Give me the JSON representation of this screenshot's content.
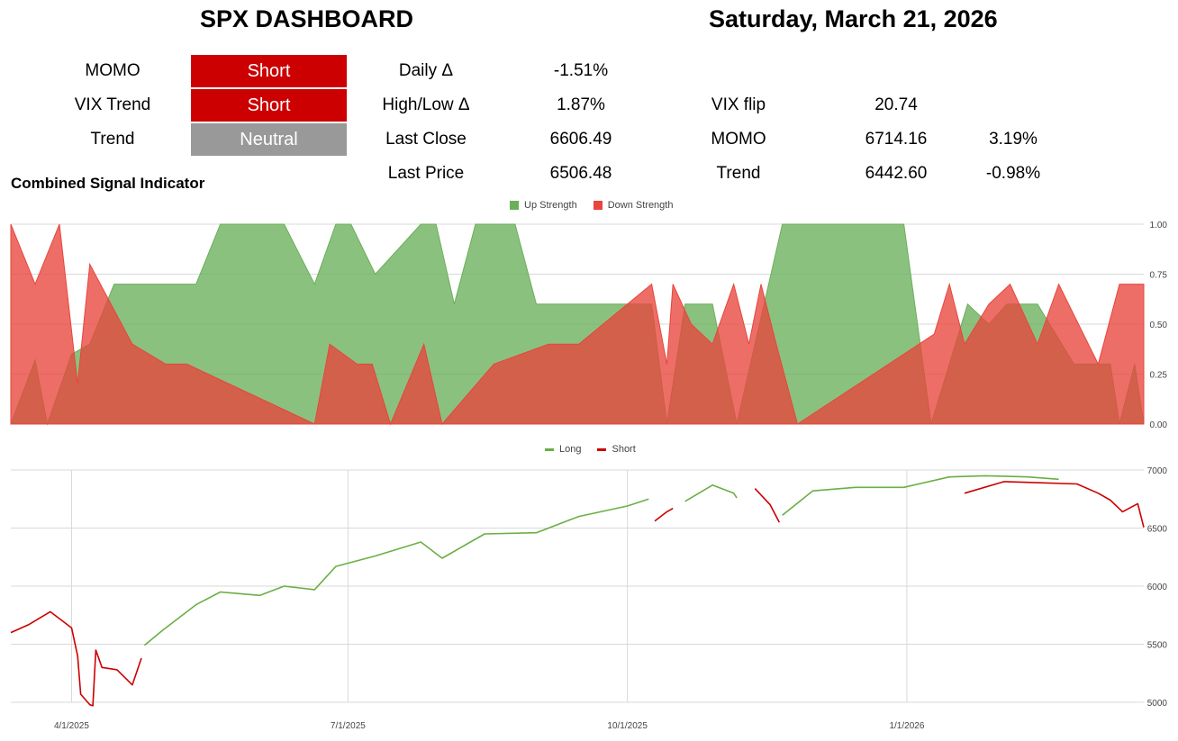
{
  "header": {
    "title": "SPX DASHBOARD",
    "date": "Saturday, March 21, 2026"
  },
  "signals": [
    {
      "label": "MOMO",
      "value": "Short",
      "color": "#cc0000"
    },
    {
      "label": "VIX Trend",
      "value": "Short",
      "color": "#cc0000"
    },
    {
      "label": "Trend",
      "value": "Neutral",
      "color": "#999999"
    }
  ],
  "stats": [
    {
      "label": "Daily Δ",
      "value": "-1.51%"
    },
    {
      "label": "High/Low Δ",
      "value": "1.87%"
    },
    {
      "label": "Last Close",
      "value": "6606.49"
    },
    {
      "label": "Last Price",
      "value": "6506.48"
    }
  ],
  "levels": [
    {
      "label": "VIX flip",
      "value": "20.74",
      "pct": ""
    },
    {
      "label": "MOMO",
      "value": "6714.16",
      "pct": "3.19%"
    },
    {
      "label": "Trend",
      "value": "6442.60",
      "pct": "-0.98%"
    }
  ],
  "section_title": "Combined Signal Indicator",
  "colors": {
    "up": "#6aaf5a",
    "down": "#e8453c",
    "long": "#6aaf45",
    "short": "#cc0000"
  },
  "chart_data": [
    {
      "type": "area",
      "legend": [
        "Up Strength",
        "Down Strength"
      ],
      "legend_position": "top-center",
      "yticks": [
        "1.00",
        "0.75",
        "0.50",
        "0.25",
        "0.00"
      ],
      "ylim": [
        0,
        1
      ],
      "x_range": [
        "3/12/2025",
        "3/20/2026"
      ],
      "grid": true,
      "series": [
        {
          "name": "Up Strength",
          "x": [
            "3/12/2025",
            "3/20/2025",
            "3/24/2025",
            "4/1/2025",
            "4/7/2025",
            "4/15/2025",
            "4/25/2025",
            "5/1/2025",
            "5/12/2025",
            "5/20/2025",
            "6/10/2025",
            "6/20/2025",
            "6/27/2025",
            "7/2/2025",
            "7/10/2025",
            "7/25/2025",
            "7/30/2025",
            "8/5/2025",
            "8/12/2025",
            "8/25/2025",
            "9/1/2025",
            "9/10/2025",
            "9/17/2025",
            "9/25/2025",
            "10/9/2025",
            "10/14/2025",
            "10/20/2025",
            "10/29/2025",
            "11/6/2025",
            "11/15/2025",
            "11/21/2025",
            "11/28/2025",
            "12/10/2025",
            "12/18/2025",
            "12/31/2025",
            "1/9/2026",
            "1/21/2026",
            "1/28/2026",
            "2/3/2026",
            "2/13/2026",
            "2/25/2026",
            "3/9/2026",
            "3/12/2026",
            "3/17/2026",
            "3/20/2026"
          ],
          "y": [
            0,
            0.32,
            0,
            0.35,
            0.4,
            0.7,
            0.7,
            0.7,
            0.7,
            1.0,
            1.0,
            0.7,
            1.0,
            1.0,
            0.75,
            1.0,
            1.0,
            0.6,
            1.0,
            1.0,
            0.6,
            0.6,
            0.6,
            0.6,
            0.6,
            0,
            0.6,
            0.6,
            0,
            0.6,
            1.0,
            1.0,
            1.0,
            1.0,
            1.0,
            0,
            0.6,
            0.5,
            0.6,
            0.6,
            0.3,
            0.3,
            0,
            0.3,
            0
          ]
        },
        {
          "name": "Down Strength",
          "x": [
            "3/12/2025",
            "3/20/2025",
            "3/28/2025",
            "4/3/2025",
            "4/7/2025",
            "4/14/2025",
            "4/21/2025",
            "5/2/2025",
            "5/9/2025",
            "6/20/2025",
            "6/25/2025",
            "7/4/2025",
            "7/9/2025",
            "7/15/2025",
            "7/26/2025",
            "8/1/2025",
            "8/18/2025",
            "9/5/2025",
            "9/15/2025",
            "10/9/2025",
            "10/14/2025",
            "10/16/2025",
            "10/22/2025",
            "10/29/2025",
            "11/5/2025",
            "11/10/2025",
            "11/14/2025",
            "11/19/2025",
            "11/26/2025",
            "1/10/2026",
            "1/15/2026",
            "1/20/2026",
            "1/28/2026",
            "2/4/2026",
            "2/13/2026",
            "2/20/2026",
            "3/5/2026",
            "3/12/2026",
            "3/20/2026"
          ],
          "y": [
            1.0,
            0.7,
            1.0,
            0.2,
            0.8,
            0.6,
            0.4,
            0.3,
            0.3,
            0,
            0.4,
            0.3,
            0.3,
            0,
            0.4,
            0,
            0.3,
            0.4,
            0.4,
            0.7,
            0.3,
            0.7,
            0.5,
            0.4,
            0.7,
            0.4,
            0.7,
            0.4,
            0,
            0.45,
            0.7,
            0.4,
            0.6,
            0.7,
            0.4,
            0.7,
            0.3,
            0.7,
            0.7
          ]
        }
      ]
    },
    {
      "type": "line",
      "legend": [
        "Long",
        "Short"
      ],
      "legend_position": "top-center",
      "yticks": [
        "7000",
        "6500",
        "6000",
        "5500",
        "5000"
      ],
      "ylim": [
        4950,
        7050
      ],
      "xticks": [
        "4/1/2025",
        "7/1/2025",
        "10/1/2025",
        "1/1/2026"
      ],
      "grid": true,
      "series": [
        {
          "name": "Short",
          "x": [
            "3/12/2025",
            "3/18/2025",
            "3/25/2025",
            "4/1/2025",
            "4/3/2025",
            "4/4/2025",
            "4/7/2025",
            "4/8/2025",
            "4/9/2025",
            "4/11/2025",
            "4/16/2025",
            "4/21/2025",
            "4/24/2025"
          ],
          "y": [
            5600,
            5670,
            5780,
            5640,
            5400,
            5070,
            4980,
            4970,
            5450,
            5300,
            5280,
            5150,
            5380
          ]
        },
        {
          "name": "Long",
          "x": [
            "4/25/2025",
            "5/1/2025",
            "5/12/2025",
            "5/20/2025",
            "6/2/2025",
            "6/10/2025",
            "6/20/2025",
            "6/27/2025",
            "7/10/2025",
            "7/25/2025",
            "8/1/2025",
            "8/15/2025",
            "9/1/2025",
            "9/15/2025",
            "10/1/2025",
            "10/8/2025"
          ],
          "y": [
            5490,
            5620,
            5840,
            5950,
            5920,
            6000,
            5970,
            6170,
            6260,
            6380,
            6240,
            6450,
            6460,
            6600,
            6690,
            6750
          ]
        },
        {
          "name": "Short",
          "x": [
            "10/10/2025",
            "10/14/2025",
            "10/16/2025"
          ],
          "y": [
            6560,
            6640,
            6670
          ]
        },
        {
          "name": "Long",
          "x": [
            "10/20/2025",
            "10/29/2025",
            "11/5/2025",
            "11/6/2025"
          ],
          "y": [
            6730,
            6870,
            6800,
            6760
          ]
        },
        {
          "name": "Short",
          "x": [
            "11/12/2025",
            "11/17/2025",
            "11/20/2025"
          ],
          "y": [
            6840,
            6700,
            6550
          ]
        },
        {
          "name": "Long",
          "x": [
            "11/21/2025",
            "12/1/2025",
            "12/15/2025",
            "12/31/2025",
            "1/15/2026",
            "1/27/2026",
            "2/10/2026",
            "2/20/2026"
          ],
          "y": [
            6610,
            6820,
            6850,
            6850,
            6940,
            6950,
            6940,
            6920
          ]
        },
        {
          "name": "Short",
          "x": [
            "1/20/2026",
            "2/2/2026",
            "2/26/2026",
            "3/5/2026",
            "3/9/2026",
            "3/13/2026",
            "3/18/2026",
            "3/20/2026"
          ],
          "y": [
            6800,
            6900,
            6880,
            6800,
            6740,
            6640,
            6710,
            6506.48
          ]
        }
      ]
    }
  ]
}
